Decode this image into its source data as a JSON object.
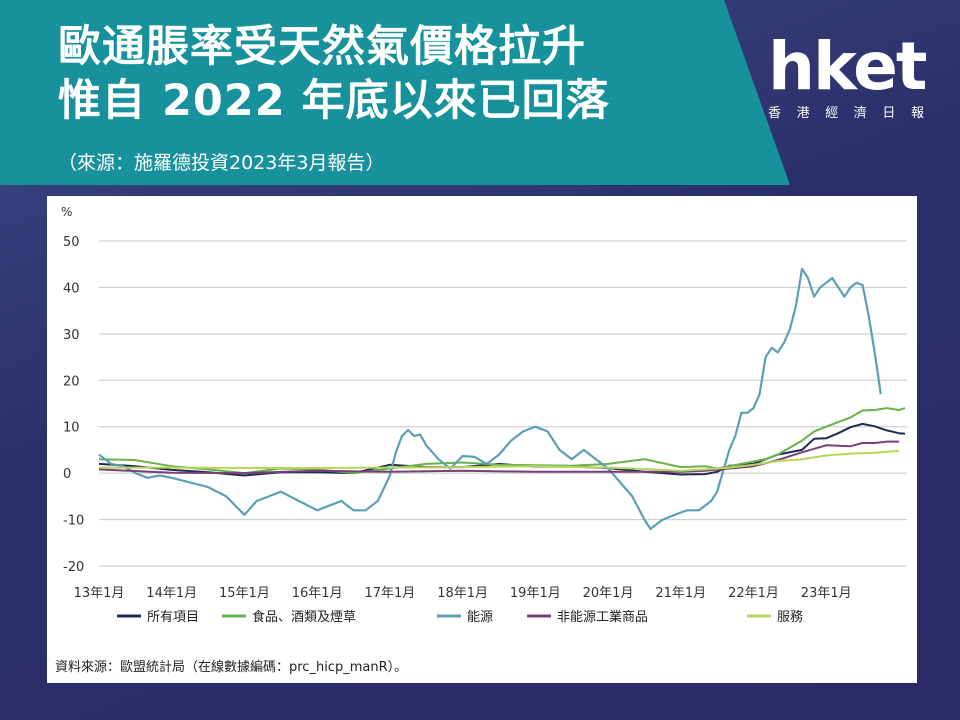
{
  "header": {
    "title_line1": "歐通脹率受天然氣價格拉升",
    "title_line2": "惟自 2022 年底以來已回落",
    "source": "（來源：施羅德投資2023年3月報告）",
    "band_color": "#17929c"
  },
  "logo": {
    "name": "hket",
    "subtitle": [
      "香",
      "港",
      "經",
      "濟",
      "日",
      "報"
    ]
  },
  "chart_data": {
    "type": "line",
    "ylabel": "%",
    "ylim": [
      -20,
      50
    ],
    "yticks": [
      "50",
      "40",
      "30",
      "20",
      "10",
      "0",
      "-10",
      "-20"
    ],
    "xticks": [
      "13年1月",
      "14年1月",
      "15年1月",
      "16年1月",
      "17年1月",
      "18年1月",
      "19年1月",
      "20年1月",
      "21年1月",
      "22年1月",
      "23年1月"
    ],
    "x_start": "2013-01",
    "x_end": "2023-02",
    "grid": true,
    "legend_position": "bottom",
    "series": [
      {
        "name": "所有項目",
        "color": "#1f2a56",
        "points": [
          [
            0,
            2.0
          ],
          [
            6,
            1.5
          ],
          [
            12,
            0.7
          ],
          [
            18,
            0.2
          ],
          [
            24,
            -0.5
          ],
          [
            30,
            0.2
          ],
          [
            36,
            0.2
          ],
          [
            42,
            0.0
          ],
          [
            48,
            1.8
          ],
          [
            54,
            1.3
          ],
          [
            60,
            1.3
          ],
          [
            66,
            2.0
          ],
          [
            72,
            1.4
          ],
          [
            78,
            1.4
          ],
          [
            84,
            1.1
          ],
          [
            90,
            0.3
          ],
          [
            96,
            -0.3
          ],
          [
            100,
            -0.2
          ],
          [
            102,
            0.3
          ],
          [
            104,
            1.6
          ],
          [
            108,
            2.0
          ],
          [
            112,
            4.0
          ],
          [
            116,
            5.0
          ],
          [
            118,
            7.4
          ],
          [
            120,
            7.5
          ],
          [
            122,
            8.6
          ],
          [
            124,
            9.9
          ],
          [
            126,
            10.6
          ],
          [
            128,
            10.1
          ],
          [
            130,
            9.2
          ],
          [
            132,
            8.6
          ],
          [
            133,
            8.5
          ]
        ]
      },
      {
        "name": "食品、酒類及煙草",
        "color": "#6ab04c",
        "points": [
          [
            0,
            3.0
          ],
          [
            6,
            2.8
          ],
          [
            12,
            1.5
          ],
          [
            18,
            0.8
          ],
          [
            24,
            0.0
          ],
          [
            30,
            1.0
          ],
          [
            36,
            0.8
          ],
          [
            42,
            0.0
          ],
          [
            48,
            1.0
          ],
          [
            54,
            2.0
          ],
          [
            60,
            2.3
          ],
          [
            66,
            1.8
          ],
          [
            72,
            1.7
          ],
          [
            78,
            1.6
          ],
          [
            84,
            2.0
          ],
          [
            90,
            3.0
          ],
          [
            96,
            1.3
          ],
          [
            100,
            1.5
          ],
          [
            102,
            1.0
          ],
          [
            104,
            1.5
          ],
          [
            108,
            2.5
          ],
          [
            110,
            3.0
          ],
          [
            112,
            4.0
          ],
          [
            116,
            7.0
          ],
          [
            118,
            9.0
          ],
          [
            120,
            10.0
          ],
          [
            122,
            11.0
          ],
          [
            124,
            12.0
          ],
          [
            126,
            13.5
          ],
          [
            128,
            13.6
          ],
          [
            130,
            14.0
          ],
          [
            132,
            13.6
          ],
          [
            133,
            14.0
          ]
        ]
      },
      {
        "name": "能源",
        "color": "#5b9fb5",
        "points": [
          [
            0,
            4.0
          ],
          [
            2,
            2.0
          ],
          [
            4,
            1.5
          ],
          [
            6,
            0.0
          ],
          [
            8,
            -1.0
          ],
          [
            10,
            -0.5
          ],
          [
            12,
            -1.0
          ],
          [
            15,
            -2.0
          ],
          [
            18,
            -3.0
          ],
          [
            21,
            -5.0
          ],
          [
            24,
            -9.0
          ],
          [
            26,
            -6.0
          ],
          [
            28,
            -5.0
          ],
          [
            30,
            -4.0
          ],
          [
            33,
            -6.0
          ],
          [
            36,
            -8.0
          ],
          [
            38,
            -7.0
          ],
          [
            40,
            -6.0
          ],
          [
            42,
            -8.0
          ],
          [
            44,
            -8.0
          ],
          [
            46,
            -6.0
          ],
          [
            48,
            -0.5
          ],
          [
            49,
            4.5
          ],
          [
            50,
            8.0
          ],
          [
            51,
            9.3
          ],
          [
            52,
            8.0
          ],
          [
            53,
            8.3
          ],
          [
            54,
            6.0
          ],
          [
            56,
            3.0
          ],
          [
            58,
            1.0
          ],
          [
            60,
            3.7
          ],
          [
            62,
            3.5
          ],
          [
            64,
            2.0
          ],
          [
            66,
            4.0
          ],
          [
            68,
            7.0
          ],
          [
            70,
            9.0
          ],
          [
            72,
            10.0
          ],
          [
            74,
            9.0
          ],
          [
            76,
            5.0
          ],
          [
            78,
            3.0
          ],
          [
            80,
            5.0
          ],
          [
            82,
            3.0
          ],
          [
            84,
            1.0
          ],
          [
            86,
            -2.0
          ],
          [
            88,
            -5.0
          ],
          [
            90,
            -10.0
          ],
          [
            91,
            -12.0
          ],
          [
            93,
            -10.0
          ],
          [
            95,
            -9.0
          ],
          [
            97,
            -8.0
          ],
          [
            99,
            -8.0
          ],
          [
            101,
            -6.0
          ],
          [
            102,
            -4.0
          ],
          [
            103,
            0.5
          ],
          [
            104,
            5.0
          ],
          [
            105,
            8.0
          ],
          [
            106,
            13.0
          ],
          [
            107,
            13.0
          ],
          [
            108,
            14.0
          ],
          [
            109,
            17.0
          ],
          [
            110,
            25.0
          ],
          [
            111,
            27.0
          ],
          [
            112,
            26.0
          ],
          [
            113,
            28.0
          ],
          [
            114,
            31.0
          ],
          [
            115,
            36.0
          ],
          [
            116,
            44.0
          ],
          [
            117,
            42.0
          ],
          [
            118,
            38.0
          ],
          [
            119,
            40.0
          ],
          [
            120,
            41.0
          ],
          [
            121,
            42.0
          ],
          [
            122,
            40.0
          ],
          [
            123,
            38.0
          ],
          [
            124,
            40.0
          ],
          [
            125,
            41.0
          ],
          [
            126,
            40.5
          ],
          [
            127,
            34.0
          ],
          [
            128,
            26.0
          ],
          [
            129,
            17.0
          ]
        ]
      },
      {
        "name": "非能源工業商品",
        "color": "#7a3f78",
        "points": [
          [
            0,
            0.8
          ],
          [
            12,
            0.1
          ],
          [
            24,
            0.0
          ],
          [
            36,
            0.5
          ],
          [
            48,
            0.3
          ],
          [
            60,
            0.5
          ],
          [
            72,
            0.3
          ],
          [
            84,
            0.3
          ],
          [
            96,
            0.3
          ],
          [
            100,
            0.5
          ],
          [
            104,
            1.0
          ],
          [
            108,
            1.5
          ],
          [
            112,
            2.8
          ],
          [
            116,
            4.5
          ],
          [
            120,
            6.0
          ],
          [
            124,
            5.8
          ],
          [
            126,
            6.5
          ],
          [
            128,
            6.5
          ],
          [
            130,
            6.8
          ],
          [
            132,
            6.8
          ]
        ]
      },
      {
        "name": "服務",
        "color": "#b6d55b",
        "points": [
          [
            0,
            1.2
          ],
          [
            12,
            1.2
          ],
          [
            24,
            1.1
          ],
          [
            36,
            1.1
          ],
          [
            48,
            1.2
          ],
          [
            60,
            1.3
          ],
          [
            72,
            1.5
          ],
          [
            84,
            1.2
          ],
          [
            90,
            0.9
          ],
          [
            96,
            0.5
          ],
          [
            100,
            0.8
          ],
          [
            104,
            1.2
          ],
          [
            108,
            1.8
          ],
          [
            112,
            2.6
          ],
          [
            116,
            3.0
          ],
          [
            120,
            3.8
          ],
          [
            124,
            4.2
          ],
          [
            128,
            4.4
          ],
          [
            132,
            4.8
          ]
        ]
      }
    ]
  },
  "chart_source": "資料來源：歐盟統計局（在線數據編碼：prc_hicp_manR）。"
}
